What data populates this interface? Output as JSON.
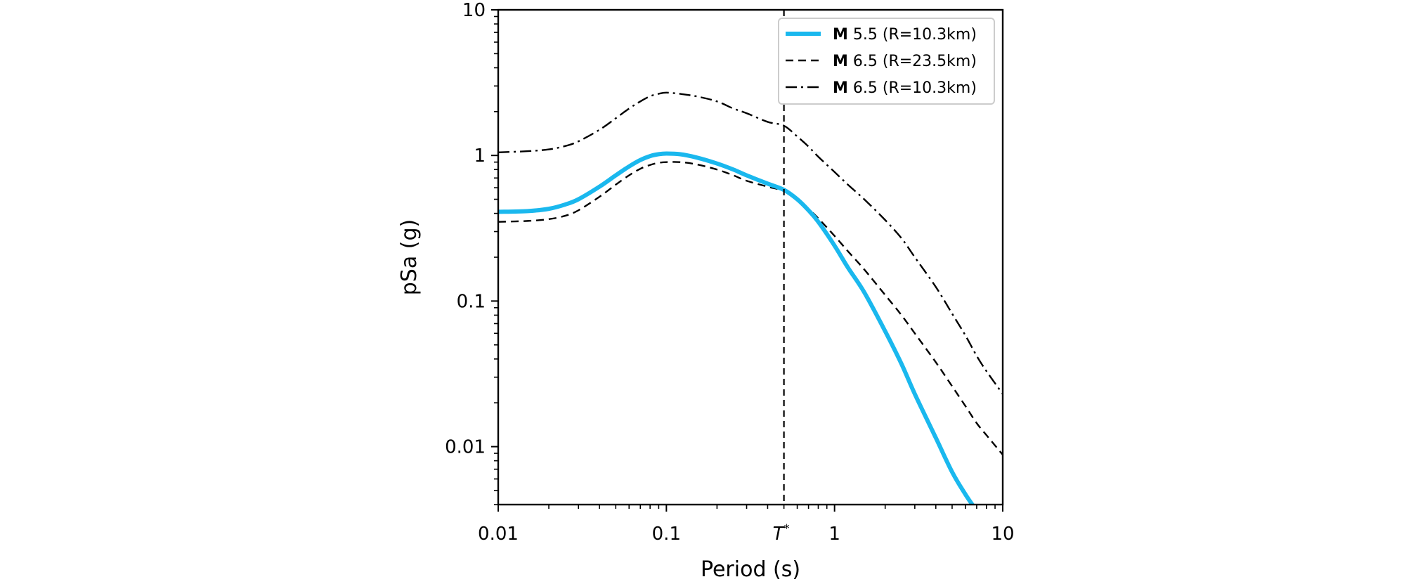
{
  "chart_data": {
    "type": "line",
    "title": "",
    "xlabel": "Period (s)",
    "ylabel": "pSa (g)",
    "xscale": "log",
    "yscale": "log",
    "xlim": [
      0.01,
      10
    ],
    "ylim": [
      0.004,
      10
    ],
    "xticks": [
      {
        "value": 0.01,
        "label": "0.01"
      },
      {
        "value": 0.1,
        "label": "0.1"
      },
      {
        "value": 1,
        "label": "1"
      },
      {
        "value": 10,
        "label": "10"
      }
    ],
    "yticks": [
      {
        "value": 0.01,
        "label": "0.01"
      },
      {
        "value": 0.1,
        "label": "0.1"
      },
      {
        "value": 1,
        "label": "1"
      },
      {
        "value": 10,
        "label": "10"
      }
    ],
    "reference_line": {
      "x": 0.5,
      "label": "T",
      "label_superscript": "*",
      "style": "dashed",
      "color": "#000000"
    },
    "legend_position": "upper-right",
    "series": [
      {
        "name": "M 5.5 (R=10.3km)",
        "legend_bold": "M",
        "legend_rest": " 5.5 (R=10.3km)",
        "style": "solid",
        "color": "#1ab8ee",
        "x": [
          0.01,
          0.015,
          0.02,
          0.025,
          0.03,
          0.04,
          0.05,
          0.06,
          0.07,
          0.08,
          0.09,
          0.1,
          0.12,
          0.15,
          0.2,
          0.25,
          0.3,
          0.4,
          0.5,
          0.6,
          0.7,
          0.8,
          1.0,
          1.2,
          1.5,
          2.0,
          2.5,
          3.0,
          4.0,
          5.0,
          6.0,
          6.8
        ],
        "y": [
          0.41,
          0.415,
          0.43,
          0.46,
          0.5,
          0.61,
          0.73,
          0.84,
          0.93,
          0.99,
          1.02,
          1.03,
          1.02,
          0.97,
          0.88,
          0.8,
          0.73,
          0.64,
          0.58,
          0.5,
          0.42,
          0.35,
          0.24,
          0.17,
          0.115,
          0.062,
          0.037,
          0.023,
          0.0115,
          0.0067,
          0.0047,
          0.0038
        ]
      },
      {
        "name": "M 6.5 (R=23.5km)",
        "legend_bold": "M",
        "legend_rest": " 6.5 (R=23.5km)",
        "style": "dashed",
        "color": "#000000",
        "x": [
          0.01,
          0.015,
          0.02,
          0.025,
          0.03,
          0.04,
          0.05,
          0.06,
          0.07,
          0.08,
          0.09,
          0.1,
          0.12,
          0.15,
          0.2,
          0.25,
          0.3,
          0.4,
          0.5,
          0.6,
          0.7,
          0.8,
          1.0,
          1.2,
          1.5,
          2.0,
          2.5,
          3.0,
          4.0,
          5.0,
          6.0,
          7.0,
          8.0,
          10.0
        ],
        "y": [
          0.35,
          0.355,
          0.365,
          0.385,
          0.42,
          0.52,
          0.63,
          0.73,
          0.81,
          0.86,
          0.89,
          0.9,
          0.9,
          0.87,
          0.8,
          0.73,
          0.67,
          0.61,
          0.57,
          0.5,
          0.43,
          0.37,
          0.28,
          0.22,
          0.165,
          0.11,
          0.08,
          0.06,
          0.038,
          0.026,
          0.019,
          0.0145,
          0.012,
          0.0088
        ]
      },
      {
        "name": "M 6.5 (R=10.3km)",
        "legend_bold": "M",
        "legend_rest": " 6.5 (R=10.3km)",
        "style": "dashdot",
        "color": "#000000",
        "x": [
          0.01,
          0.015,
          0.02,
          0.025,
          0.03,
          0.04,
          0.05,
          0.06,
          0.07,
          0.08,
          0.09,
          0.1,
          0.12,
          0.15,
          0.2,
          0.25,
          0.3,
          0.4,
          0.5,
          0.6,
          0.7,
          0.8,
          1.0,
          1.2,
          1.5,
          2.0,
          2.5,
          3.0,
          4.0,
          5.0,
          6.0,
          7.0,
          8.0,
          10.0
        ],
        "y": [
          1.05,
          1.07,
          1.1,
          1.16,
          1.25,
          1.5,
          1.8,
          2.1,
          2.35,
          2.55,
          2.65,
          2.7,
          2.65,
          2.55,
          2.35,
          2.1,
          1.95,
          1.7,
          1.6,
          1.35,
          1.15,
          0.98,
          0.77,
          0.63,
          0.5,
          0.36,
          0.27,
          0.2,
          0.125,
          0.082,
          0.058,
          0.042,
          0.033,
          0.023
        ]
      }
    ]
  }
}
